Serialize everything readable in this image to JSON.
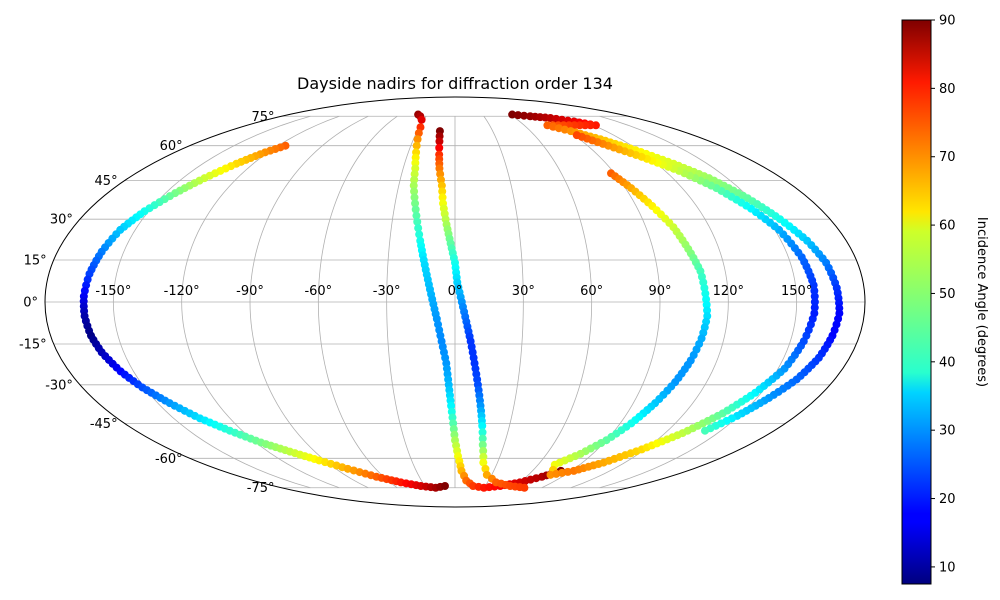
{
  "chart_data": {
    "type": "scatter",
    "title": "Dayside nadirs for diffraction order 134",
    "projection": "mollweide",
    "grid": true,
    "x_tick_labels": [
      "-150°",
      "-120°",
      "-90°",
      "-60°",
      "-30°",
      "0°",
      "30°",
      "60°",
      "90°",
      "120°",
      "150°"
    ],
    "x_tick_values": [
      -150,
      -120,
      -90,
      -60,
      -30,
      0,
      30,
      60,
      90,
      120,
      150
    ],
    "y_tick_labels": [
      "75°",
      "60°",
      "45°",
      "30°",
      "15°",
      "0°",
      "-15°",
      "-30°",
      "-45°",
      "-60°",
      "-75°"
    ],
    "y_tick_values": [
      75,
      60,
      45,
      30,
      15,
      0,
      -15,
      -30,
      -45,
      -60,
      -75
    ],
    "colorbar": {
      "label": "Incidence Angle (degrees)",
      "colormap": "jet",
      "range": [
        7.5,
        90
      ],
      "ticks": [
        10,
        20,
        30,
        40,
        50,
        60,
        70,
        80,
        90
      ]
    },
    "series": [
      {
        "points": [
          [
            -115,
            60,
            72
          ],
          [
            -122,
            57,
            68
          ],
          [
            -130,
            52,
            62
          ],
          [
            -138,
            46,
            55
          ],
          [
            -145,
            40,
            48
          ],
          [
            -152,
            33,
            40
          ],
          [
            -157,
            26,
            34
          ],
          [
            -160,
            18,
            28
          ],
          [
            -162,
            10,
            23
          ],
          [
            -163,
            2,
            17
          ],
          [
            -163,
            -5,
            11
          ],
          [
            -162,
            -12,
            8
          ],
          [
            -160,
            -18,
            12
          ],
          [
            -156,
            -25,
            18
          ],
          [
            -151,
            -31,
            24
          ],
          [
            -144,
            -37,
            30
          ],
          [
            -136,
            -43,
            36
          ],
          [
            -127,
            -48,
            42
          ],
          [
            -117,
            -53,
            48
          ],
          [
            -106,
            -57,
            54
          ],
          [
            -94,
            -61,
            60
          ],
          [
            -81,
            -65,
            66
          ],
          [
            -66,
            -69,
            72
          ],
          [
            -50,
            -72,
            78
          ],
          [
            -34,
            -74,
            83
          ],
          [
            -20,
            -75,
            87
          ],
          [
            -10,
            -74,
            90
          ]
        ]
      },
      {
        "points": [
          [
            -40,
            76,
            88
          ],
          [
            -36,
            75,
            86
          ],
          [
            -32,
            73,
            82
          ],
          [
            -29,
            69,
            76
          ],
          [
            -27,
            63,
            68
          ],
          [
            -25,
            57,
            62
          ],
          [
            -23,
            50,
            56
          ],
          [
            -22,
            43,
            52
          ],
          [
            -20,
            36,
            48
          ],
          [
            -18,
            29,
            44
          ],
          [
            -16,
            22,
            40
          ],
          [
            -14,
            15,
            36
          ],
          [
            -12,
            8,
            34
          ],
          [
            -10,
            1,
            32
          ],
          [
            -8,
            -6,
            30
          ],
          [
            -6,
            -14,
            29
          ],
          [
            -4,
            -22,
            30
          ],
          [
            -3,
            -30,
            33
          ],
          [
            -2,
            -38,
            38
          ],
          [
            -1,
            -45,
            45
          ],
          [
            0,
            -52,
            52
          ],
          [
            2,
            -59,
            58
          ],
          [
            5,
            -66,
            65
          ],
          [
            10,
            -71,
            71
          ],
          [
            18,
            -74,
            75
          ],
          [
            30,
            -75,
            78
          ],
          [
            45,
            -74,
            80
          ],
          [
            60,
            -72,
            83
          ],
          [
            73,
            -69,
            86
          ],
          [
            82,
            -66,
            90
          ]
        ]
      },
      {
        "points": [
          [
            -12,
            67,
            90
          ],
          [
            -11,
            62,
            84
          ],
          [
            -10,
            56,
            76
          ],
          [
            -9,
            50,
            70
          ],
          [
            -7,
            43,
            64
          ],
          [
            -6,
            36,
            58
          ],
          [
            -4,
            28,
            52
          ],
          [
            -2,
            21,
            46
          ],
          [
            0,
            14,
            40
          ],
          [
            1,
            7,
            35
          ],
          [
            3,
            0,
            30
          ],
          [
            5,
            -7,
            26
          ],
          [
            7,
            -14,
            22
          ],
          [
            9,
            -22,
            22
          ],
          [
            11,
            -30,
            24
          ],
          [
            13,
            -38,
            30
          ],
          [
            15,
            -46,
            38
          ],
          [
            17,
            -54,
            48
          ],
          [
            20,
            -62,
            58
          ],
          [
            26,
            -68,
            66
          ],
          [
            38,
            -72,
            72
          ],
          [
            55,
            -74,
            74
          ],
          [
            72,
            -75,
            75
          ]
        ]
      },
      {
        "points": [
          [
            62,
            76,
            90
          ],
          [
            78,
            75,
            88
          ],
          [
            95,
            74,
            85
          ],
          [
            110,
            72,
            81
          ],
          [
            122,
            70,
            78
          ],
          [
            80,
            70,
            72
          ],
          [
            92,
            67,
            68
          ],
          [
            105,
            63,
            64
          ],
          [
            118,
            58,
            60
          ],
          [
            130,
            52,
            56
          ],
          [
            140,
            46,
            51
          ],
          [
            149,
            38,
            46
          ],
          [
            156,
            30,
            40
          ],
          [
            162,
            22,
            34
          ],
          [
            166,
            14,
            28
          ],
          [
            168,
            5,
            22
          ],
          [
            169,
            -4,
            18
          ],
          [
            168,
            -12,
            18
          ],
          [
            166,
            -20,
            22
          ],
          [
            162,
            -28,
            26
          ],
          [
            156,
            -35,
            30
          ],
          [
            149,
            -42,
            36
          ],
          [
            141,
            -48,
            44
          ]
        ]
      },
      {
        "points": [
          [
            88,
            48,
            72
          ],
          [
            93,
            42,
            66
          ],
          [
            98,
            35,
            60
          ],
          [
            103,
            27,
            55
          ],
          [
            106,
            19,
            50
          ],
          [
            109,
            11,
            44
          ],
          [
            110,
            3,
            40
          ],
          [
            111,
            -5,
            36
          ],
          [
            110,
            -13,
            32
          ],
          [
            108,
            -21,
            30
          ],
          [
            105,
            -29,
            30
          ],
          [
            101,
            -37,
            34
          ],
          [
            96,
            -45,
            40
          ],
          [
            90,
            -52,
            46
          ],
          [
            82,
            -58,
            52
          ],
          [
            72,
            -63,
            58
          ],
          [
            78,
            -68,
            68
          ],
          [
            92,
            -66,
            70
          ],
          [
            105,
            -62,
            66
          ],
          [
            118,
            -56,
            62
          ],
          [
            130,
            -49,
            54
          ],
          [
            140,
            -41,
            46
          ],
          [
            147,
            -33,
            38
          ],
          [
            153,
            -24,
            30
          ],
          [
            156,
            -14,
            24
          ],
          [
            158,
            -4,
            20
          ],
          [
            158,
            6,
            22
          ],
          [
            156,
            16,
            26
          ],
          [
            152,
            26,
            32
          ],
          [
            146,
            34,
            38
          ],
          [
            138,
            42,
            46
          ],
          [
            128,
            49,
            54
          ],
          [
            116,
            55,
            62
          ],
          [
            104,
            60,
            68
          ],
          [
            92,
            65,
            74
          ]
        ]
      }
    ]
  }
}
